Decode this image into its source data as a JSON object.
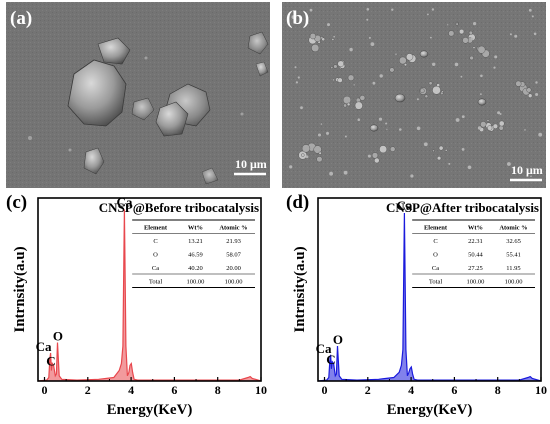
{
  "panels": {
    "a": {
      "label": "(a)",
      "scale_bar": "10 μm"
    },
    "b": {
      "label": "(b)",
      "scale_bar": "10 μm"
    },
    "c": {
      "label": "(c)"
    },
    "d": {
      "label": "(d)"
    }
  },
  "colors": {
    "spectrum_c": "#e8474d",
    "spectrum_d": "#1a1adc",
    "sem_background": "#737373"
  },
  "chart_data": [
    {
      "type": "area",
      "panel": "c",
      "title": "CNSP@Before tribocatalysis",
      "xlabel": "Energy(KeV)",
      "ylabel": "Intrnsity(a.u)",
      "xlim": [
        -0.3,
        10
      ],
      "ylim": [
        0,
        1
      ],
      "xticks": [
        0,
        2,
        4,
        6,
        8,
        10
      ],
      "grid": false,
      "series": [
        {
          "values_note": "EDS spectrum",
          "x": [
            -0.3,
            0.1,
            0.2,
            0.25,
            0.28,
            0.32,
            0.36,
            0.42,
            0.5,
            0.55,
            0.6,
            0.68,
            0.8,
            1.5,
            2.5,
            3.2,
            3.45,
            3.55,
            3.62,
            3.69,
            3.76,
            3.83,
            3.9,
            3.95,
            4.01,
            4.07,
            4.14,
            4.3,
            5,
            7,
            9,
            9.4,
            9.5,
            9.6,
            10
          ],
          "y": [
            0,
            0.005,
            0.02,
            0.13,
            0.16,
            0.06,
            0.1,
            0.09,
            0.03,
            0.04,
            0.22,
            0.03,
            0.01,
            0.005,
            0.01,
            0.02,
            0.06,
            0.1,
            0.2,
            0.98,
            0.2,
            0.03,
            0.05,
            0.09,
            0.1,
            0.05,
            0.01,
            0.005,
            0.005,
            0.005,
            0.005,
            0.02,
            0.025,
            0.015,
            0
          ]
        }
      ],
      "peak_labels": [
        {
          "text": "Ca",
          "x": 0.3,
          "y": 0.16
        },
        {
          "text": "C",
          "x": 0.35,
          "y": 0.1
        },
        {
          "text": "O",
          "x": 0.6,
          "y": 0.22
        },
        {
          "text": "Ca",
          "x": 3.69,
          "y": 0.98
        }
      ],
      "table": {
        "headers": [
          "Element",
          "Wt%",
          "Atomic %"
        ],
        "rows": [
          [
            "C",
            "13.21",
            "21.93"
          ],
          [
            "O",
            "46.59",
            "58.07"
          ],
          [
            "Ca",
            "40.20",
            "20.00"
          ],
          [
            "Total",
            "100.00",
            "100.00"
          ]
        ]
      }
    },
    {
      "type": "area",
      "panel": "d",
      "title": "CNSP@After tribocatalysis",
      "xlabel": "Energy(KeV)",
      "ylabel": "Intrnsity(a.u)",
      "xlim": [
        -0.3,
        10
      ],
      "ylim": [
        0,
        1
      ],
      "xticks": [
        0,
        2,
        4,
        6,
        8,
        10
      ],
      "grid": false,
      "series": [
        {
          "values_note": "EDS spectrum",
          "x": [
            -0.3,
            0.1,
            0.2,
            0.25,
            0.28,
            0.32,
            0.36,
            0.42,
            0.5,
            0.55,
            0.6,
            0.68,
            0.8,
            1.5,
            2.5,
            3.2,
            3.45,
            3.55,
            3.62,
            3.69,
            3.76,
            3.83,
            3.9,
            3.95,
            4.01,
            4.07,
            4.14,
            4.3,
            5,
            7,
            9,
            9.4,
            9.5,
            9.6,
            10
          ],
          "y": [
            0,
            0.005,
            0.02,
            0.12,
            0.15,
            0.07,
            0.11,
            0.1,
            0.03,
            0.04,
            0.2,
            0.03,
            0.01,
            0.005,
            0.01,
            0.02,
            0.05,
            0.09,
            0.18,
            0.96,
            0.18,
            0.03,
            0.05,
            0.07,
            0.08,
            0.04,
            0.01,
            0.005,
            0.005,
            0.005,
            0.005,
            0.02,
            0.025,
            0.015,
            0
          ]
        }
      ],
      "peak_labels": [
        {
          "text": "Ca",
          "x": 0.3,
          "y": 0.15
        },
        {
          "text": "C",
          "x": 0.35,
          "y": 0.11
        },
        {
          "text": "O",
          "x": 0.6,
          "y": 0.2
        },
        {
          "text": "Ca",
          "x": 3.69,
          "y": 0.96
        }
      ],
      "table": {
        "headers": [
          "Element",
          "Wt%",
          "Atomic %"
        ],
        "rows": [
          [
            "C",
            "22.31",
            "32.65"
          ],
          [
            "O",
            "50.44",
            "55.41"
          ],
          [
            "Ca",
            "27.25",
            "11.95"
          ],
          [
            "Total",
            "100.00",
            "100.00"
          ]
        ]
      }
    }
  ]
}
